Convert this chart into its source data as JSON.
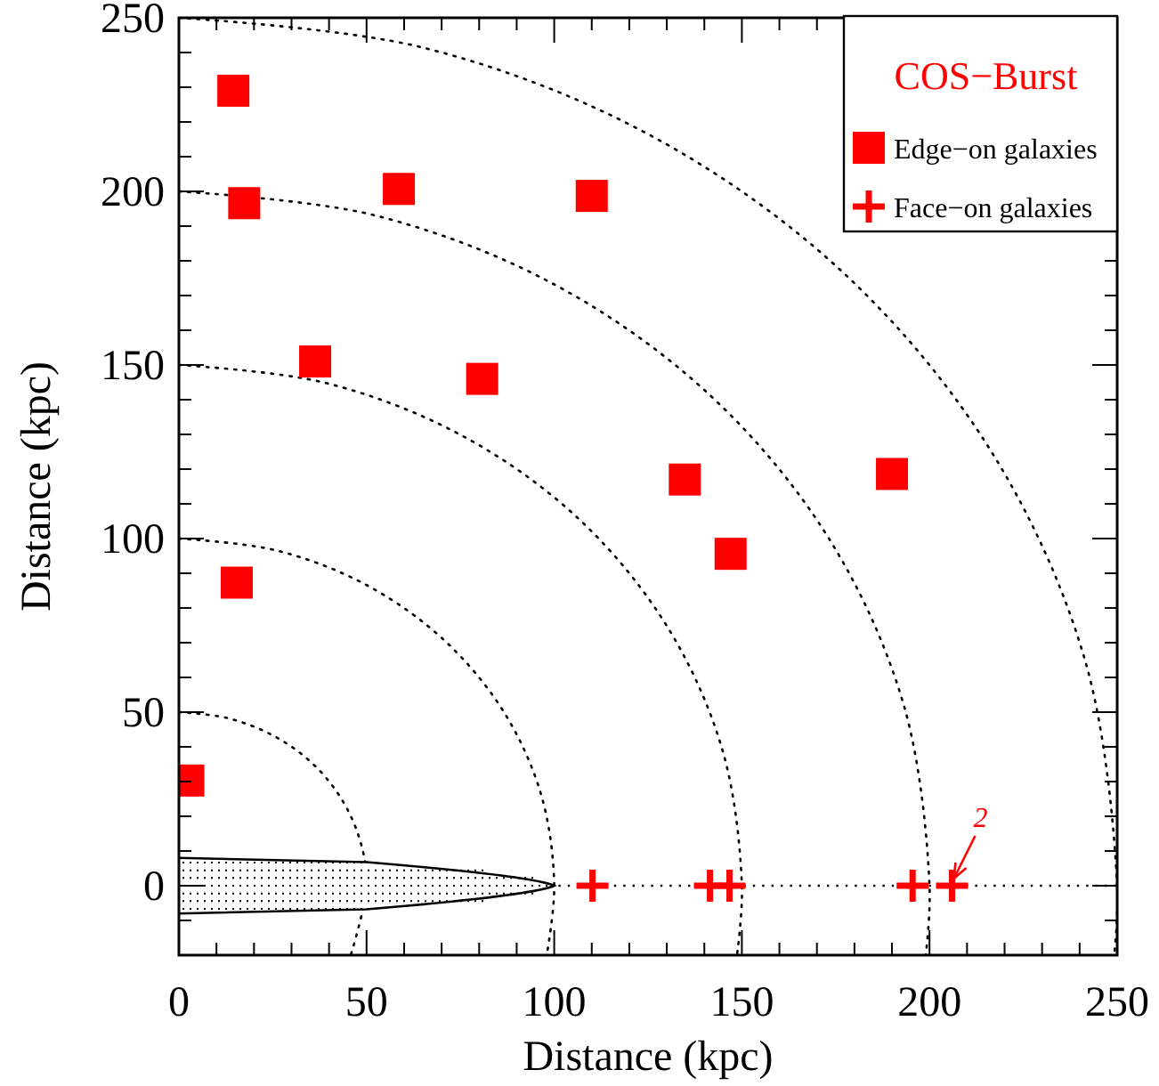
{
  "chart_data": {
    "type": "scatter",
    "xlabel": "Distance (kpc)",
    "ylabel": "Distance (kpc)",
    "legend_title": "COS−Burst",
    "xlim": [
      0,
      250
    ],
    "ylim": [
      -20,
      250
    ],
    "xticks": [
      0,
      {
        "value": 10,
        "label": null
      },
      {
        "value": 20,
        "label": null
      },
      {
        "value": 30,
        "label": null
      },
      {
        "value": 40,
        "label": null
      },
      50,
      {
        "value": 60,
        "label": null
      },
      {
        "value": 70,
        "label": null
      },
      {
        "value": 80,
        "label": null
      },
      {
        "value": 90,
        "label": null
      },
      100,
      {
        "value": 110,
        "label": null
      },
      {
        "value": 120,
        "label": null
      },
      {
        "value": 130,
        "label": null
      },
      {
        "value": 140,
        "label": null
      },
      150,
      {
        "value": 160,
        "label": null
      },
      {
        "value": 170,
        "label": null
      },
      {
        "value": 180,
        "label": null
      },
      {
        "value": 190,
        "label": null
      },
      200,
      {
        "value": 210,
        "label": null
      },
      {
        "value": 220,
        "label": null
      },
      {
        "value": 230,
        "label": null
      },
      {
        "value": 240,
        "label": null
      },
      250
    ],
    "yticks": [
      {
        "value": -10,
        "label": null
      },
      0,
      {
        "value": 10,
        "label": null
      },
      {
        "value": 20,
        "label": null
      },
      {
        "value": 30,
        "label": null
      },
      {
        "value": 40,
        "label": null
      },
      50,
      {
        "value": 60,
        "label": null
      },
      {
        "value": 70,
        "label": null
      },
      {
        "value": 80,
        "label": null
      },
      {
        "value": 90,
        "label": null
      },
      100,
      {
        "value": 110,
        "label": null
      },
      {
        "value": 120,
        "label": null
      },
      {
        "value": 130,
        "label": null
      },
      {
        "value": 140,
        "label": null
      },
      150,
      {
        "value": 160,
        "label": null
      },
      {
        "value": 170,
        "label": null
      },
      {
        "value": 180,
        "label": null
      },
      {
        "value": 190,
        "label": null
      },
      200,
      {
        "value": 210,
        "label": null
      },
      {
        "value": 220,
        "label": null
      },
      {
        "value": 230,
        "label": null
      },
      {
        "value": 240,
        "label": null
      },
      250
    ],
    "legend": "top right",
    "series": [
      {
        "name": "Edge−on galaxies",
        "color": "#ff0000",
        "marker": "square",
        "x": [
          14.5,
          17.4,
          58.6,
          110,
          36.3,
          80.8,
          134.8,
          190,
          147,
          15.4,
          2.5
        ],
        "values": [
          229,
          196.6,
          200.7,
          198.7,
          151,
          146,
          117,
          118.6,
          95.6,
          87.3,
          30.3
        ]
      },
      {
        "name": "Face−on galaxies",
        "color": "#ff0000",
        "marker": "cross",
        "x": [
          110.2,
          141.5,
          146.7,
          195.5,
          206
        ],
        "values": [
          0,
          0,
          0,
          0,
          0
        ]
      },
      {
        "type": "line",
        "color": "#000000",
        "line_style": "dotted",
        "x": [
          0,
          12.9,
          25,
          35.4,
          43.3,
          48.3,
          50,
          45.8
        ],
        "values": [
          50,
          48.3,
          43.3,
          35.4,
          25,
          12.9,
          0,
          -20
        ]
      },
      {
        "type": "line",
        "color": "#000000",
        "line_style": "dotted",
        "x": [
          0,
          25.9,
          50,
          70.7,
          86.6,
          96.6,
          100,
          98
        ],
        "values": [
          100,
          96.6,
          86.6,
          70.7,
          50,
          25.9,
          0,
          -20
        ]
      },
      {
        "type": "line",
        "color": "#000000",
        "line_style": "dotted",
        "x": [
          0,
          38.8,
          75,
          106.1,
          129.9,
          144.9,
          150,
          148.7
        ],
        "values": [
          150,
          144.9,
          129.9,
          106.1,
          75,
          38.8,
          0,
          -20
        ]
      },
      {
        "type": "line",
        "color": "#000000",
        "line_style": "dotted",
        "x": [
          0,
          51.8,
          100,
          141.4,
          173.2,
          193.2,
          200,
          199
        ],
        "values": [
          200,
          193.2,
          173.2,
          141.4,
          100,
          51.8,
          0,
          -20
        ]
      },
      {
        "type": "line",
        "color": "#000000",
        "line_style": "dotted",
        "x": [
          0,
          64.7,
          125,
          176.8,
          216.5,
          241.5,
          250,
          249.2
        ],
        "values": [
          250,
          241.5,
          216.5,
          176.8,
          125,
          64.7,
          0,
          -20
        ]
      }
    ],
    "ref_lines": [
      {
        "axis": "y",
        "value": 0,
        "color": "#000000",
        "line_style": "dotted"
      }
    ],
    "annotations": [
      {
        "text": "2",
        "x": 206,
        "y": 0
      }
    ]
  }
}
